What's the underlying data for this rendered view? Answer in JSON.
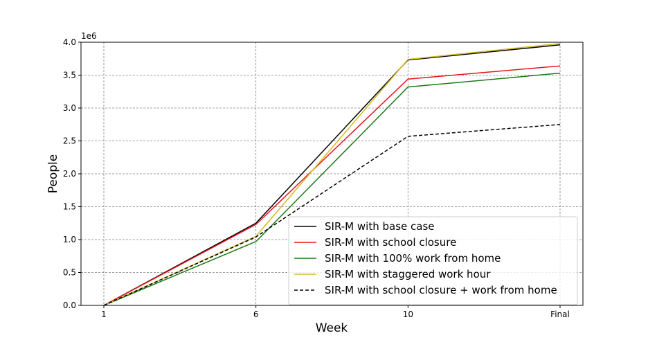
{
  "chart_data": {
    "type": "line",
    "categories": [
      "1",
      "6",
      "10",
      "Final"
    ],
    "xlabel": "Week",
    "ylabel": "People",
    "y_offset_label": "1e6",
    "ylim": [
      0,
      4.0
    ],
    "y_ticks": [
      "0.0",
      "0.5",
      "1.0",
      "1.5",
      "2.0",
      "2.5",
      "3.0",
      "3.5",
      "4.0"
    ],
    "grid": true,
    "legend_position": "lower-right",
    "series": [
      {
        "name": "SIR-M with base case",
        "values": [
          0.0,
          1.25,
          3.73,
          3.96
        ],
        "color": "#000000",
        "dash": "solid"
      },
      {
        "name": "SIR-M with school closure",
        "values": [
          0.0,
          1.23,
          3.44,
          3.64
        ],
        "color": "#e8141e",
        "dash": "solid"
      },
      {
        "name": "SIR-M with 100% work from home",
        "values": [
          0.0,
          0.97,
          3.32,
          3.53
        ],
        "color": "#1a7a14",
        "dash": "solid"
      },
      {
        "name": "SIR-M with staggered work hour",
        "values": [
          0.0,
          1.05,
          3.74,
          3.98
        ],
        "color": "#d4bb20",
        "dash": "solid"
      },
      {
        "name": "SIR-M with school closure + work from home",
        "values": [
          0.0,
          1.04,
          2.57,
          2.75
        ],
        "color": "#000000",
        "dash": "dashed"
      }
    ]
  }
}
